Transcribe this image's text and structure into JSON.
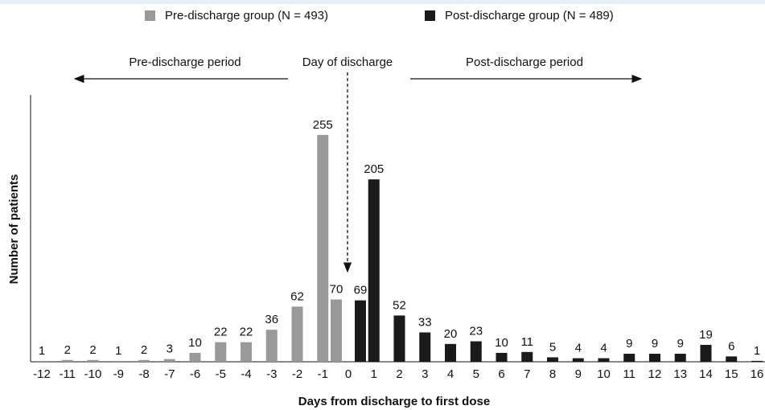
{
  "chart_data": {
    "type": "bar",
    "x_label": "Days from discharge to first dose",
    "y_label": "Number of patients",
    "annotations": [
      "Pre-discharge period",
      "Day of discharge",
      "Post-discharge period"
    ],
    "categories": [
      "-12",
      "-11",
      "-10",
      "-9",
      "-8",
      "-7",
      "-6",
      "-5",
      "-4",
      "-3",
      "-2",
      "-1",
      "0",
      "1",
      "2",
      "3",
      "4",
      "5",
      "6",
      "7",
      "8",
      "9",
      "10",
      "11",
      "12",
      "13",
      "14",
      "15",
      "16"
    ],
    "series": [
      {
        "name": "Pre-discharge group (N = 493)",
        "color": "#999999",
        "values": [
          1,
          2,
          2,
          1,
          2,
          3,
          10,
          22,
          22,
          36,
          62,
          255,
          70,
          null,
          null,
          null,
          null,
          null,
          null,
          null,
          null,
          null,
          null,
          null,
          null,
          null,
          null,
          null,
          null
        ]
      },
      {
        "name": "Post-discharge group (N = 489)",
        "color": "#1a1a1a",
        "values": [
          null,
          null,
          null,
          null,
          null,
          null,
          null,
          null,
          null,
          null,
          null,
          null,
          69,
          205,
          52,
          33,
          20,
          23,
          10,
          11,
          5,
          4,
          4,
          9,
          9,
          9,
          19,
          6,
          1
        ]
      }
    ],
    "ylim": [
      0,
      300
    ]
  }
}
